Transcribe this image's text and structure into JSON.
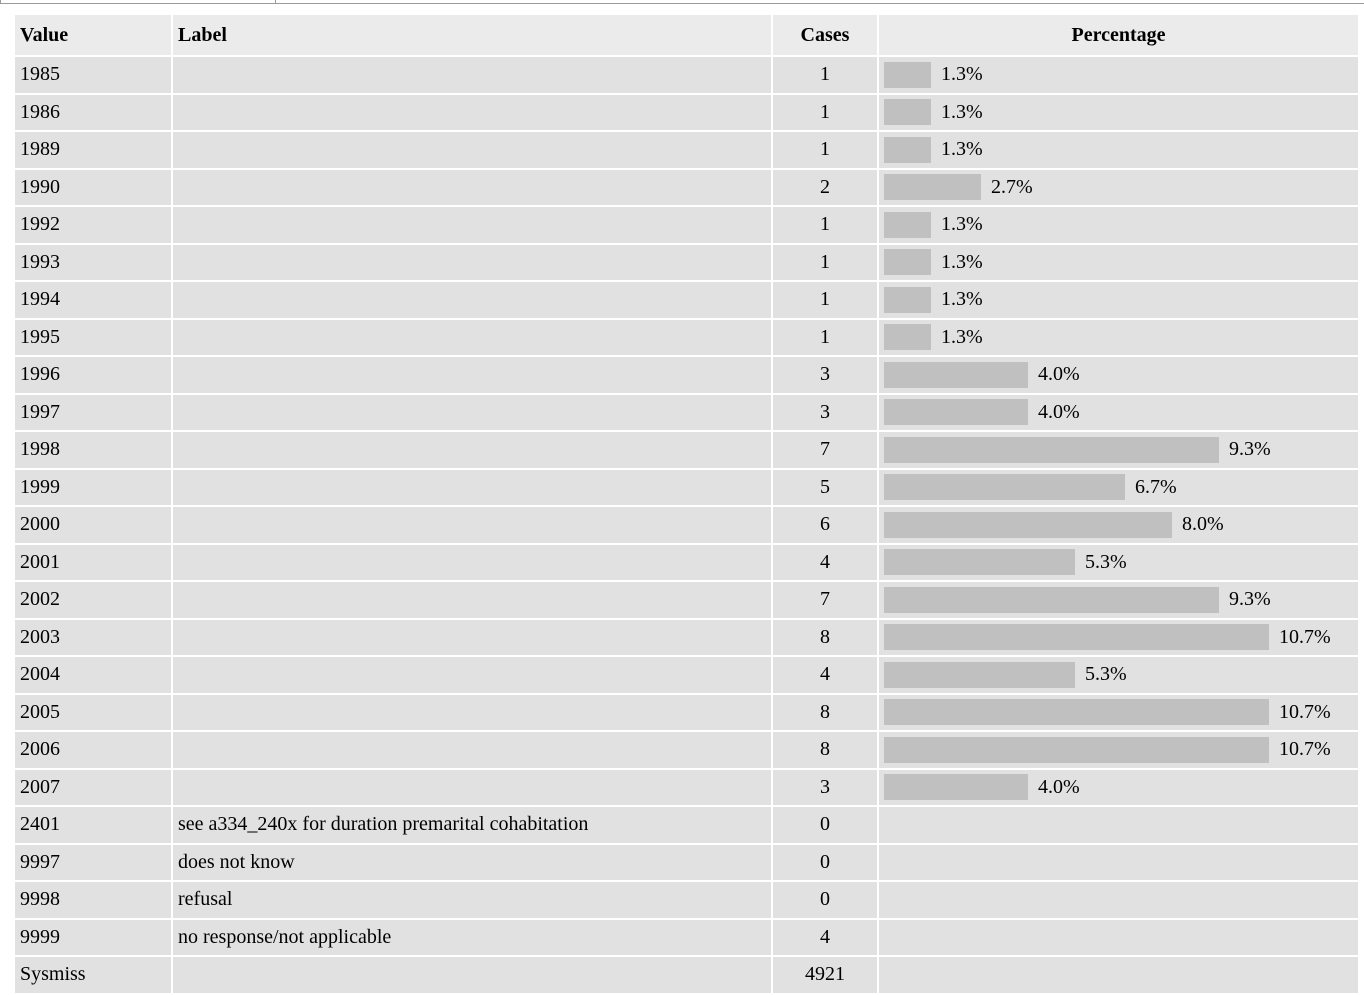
{
  "header": {
    "value": "Value",
    "label": "Label",
    "cases": "Cases",
    "percentage": "Percentage"
  },
  "max_pct": 10.7,
  "rows": [
    {
      "value": "1985",
      "label": "",
      "cases": "1",
      "pct": 1.3,
      "pct_text": "1.3%"
    },
    {
      "value": "1986",
      "label": "",
      "cases": "1",
      "pct": 1.3,
      "pct_text": "1.3%"
    },
    {
      "value": "1989",
      "label": "",
      "cases": "1",
      "pct": 1.3,
      "pct_text": "1.3%"
    },
    {
      "value": "1990",
      "label": "",
      "cases": "2",
      "pct": 2.7,
      "pct_text": "2.7%"
    },
    {
      "value": "1992",
      "label": "",
      "cases": "1",
      "pct": 1.3,
      "pct_text": "1.3%"
    },
    {
      "value": "1993",
      "label": "",
      "cases": "1",
      "pct": 1.3,
      "pct_text": "1.3%"
    },
    {
      "value": "1994",
      "label": "",
      "cases": "1",
      "pct": 1.3,
      "pct_text": "1.3%"
    },
    {
      "value": "1995",
      "label": "",
      "cases": "1",
      "pct": 1.3,
      "pct_text": "1.3%"
    },
    {
      "value": "1996",
      "label": "",
      "cases": "3",
      "pct": 4.0,
      "pct_text": "4.0%"
    },
    {
      "value": "1997",
      "label": "",
      "cases": "3",
      "pct": 4.0,
      "pct_text": "4.0%"
    },
    {
      "value": "1998",
      "label": "",
      "cases": "7",
      "pct": 9.3,
      "pct_text": "9.3%"
    },
    {
      "value": "1999",
      "label": "",
      "cases": "5",
      "pct": 6.7,
      "pct_text": "6.7%"
    },
    {
      "value": "2000",
      "label": "",
      "cases": "6",
      "pct": 8.0,
      "pct_text": "8.0%"
    },
    {
      "value": "2001",
      "label": "",
      "cases": "4",
      "pct": 5.3,
      "pct_text": "5.3%"
    },
    {
      "value": "2002",
      "label": "",
      "cases": "7",
      "pct": 9.3,
      "pct_text": "9.3%"
    },
    {
      "value": "2003",
      "label": "",
      "cases": "8",
      "pct": 10.7,
      "pct_text": "10.7%"
    },
    {
      "value": "2004",
      "label": "",
      "cases": "4",
      "pct": 5.3,
      "pct_text": "5.3%"
    },
    {
      "value": "2005",
      "label": "",
      "cases": "8",
      "pct": 10.7,
      "pct_text": "10.7%"
    },
    {
      "value": "2006",
      "label": "",
      "cases": "8",
      "pct": 10.7,
      "pct_text": "10.7%"
    },
    {
      "value": "2007",
      "label": "",
      "cases": "3",
      "pct": 4.0,
      "pct_text": "4.0%"
    },
    {
      "value": "2401",
      "label": "see a334_240x for duration premarital cohabitation",
      "cases": "0",
      "pct": null,
      "pct_text": ""
    },
    {
      "value": "9997",
      "label": "does not know",
      "cases": "0",
      "pct": null,
      "pct_text": ""
    },
    {
      "value": "9998",
      "label": "refusal",
      "cases": "0",
      "pct": null,
      "pct_text": ""
    },
    {
      "value": "9999",
      "label": "no response/not applicable",
      "cases": "4",
      "pct": null,
      "pct_text": ""
    },
    {
      "value": "Sysmiss",
      "label": "",
      "cases": "4921",
      "pct": null,
      "pct_text": ""
    }
  ]
}
